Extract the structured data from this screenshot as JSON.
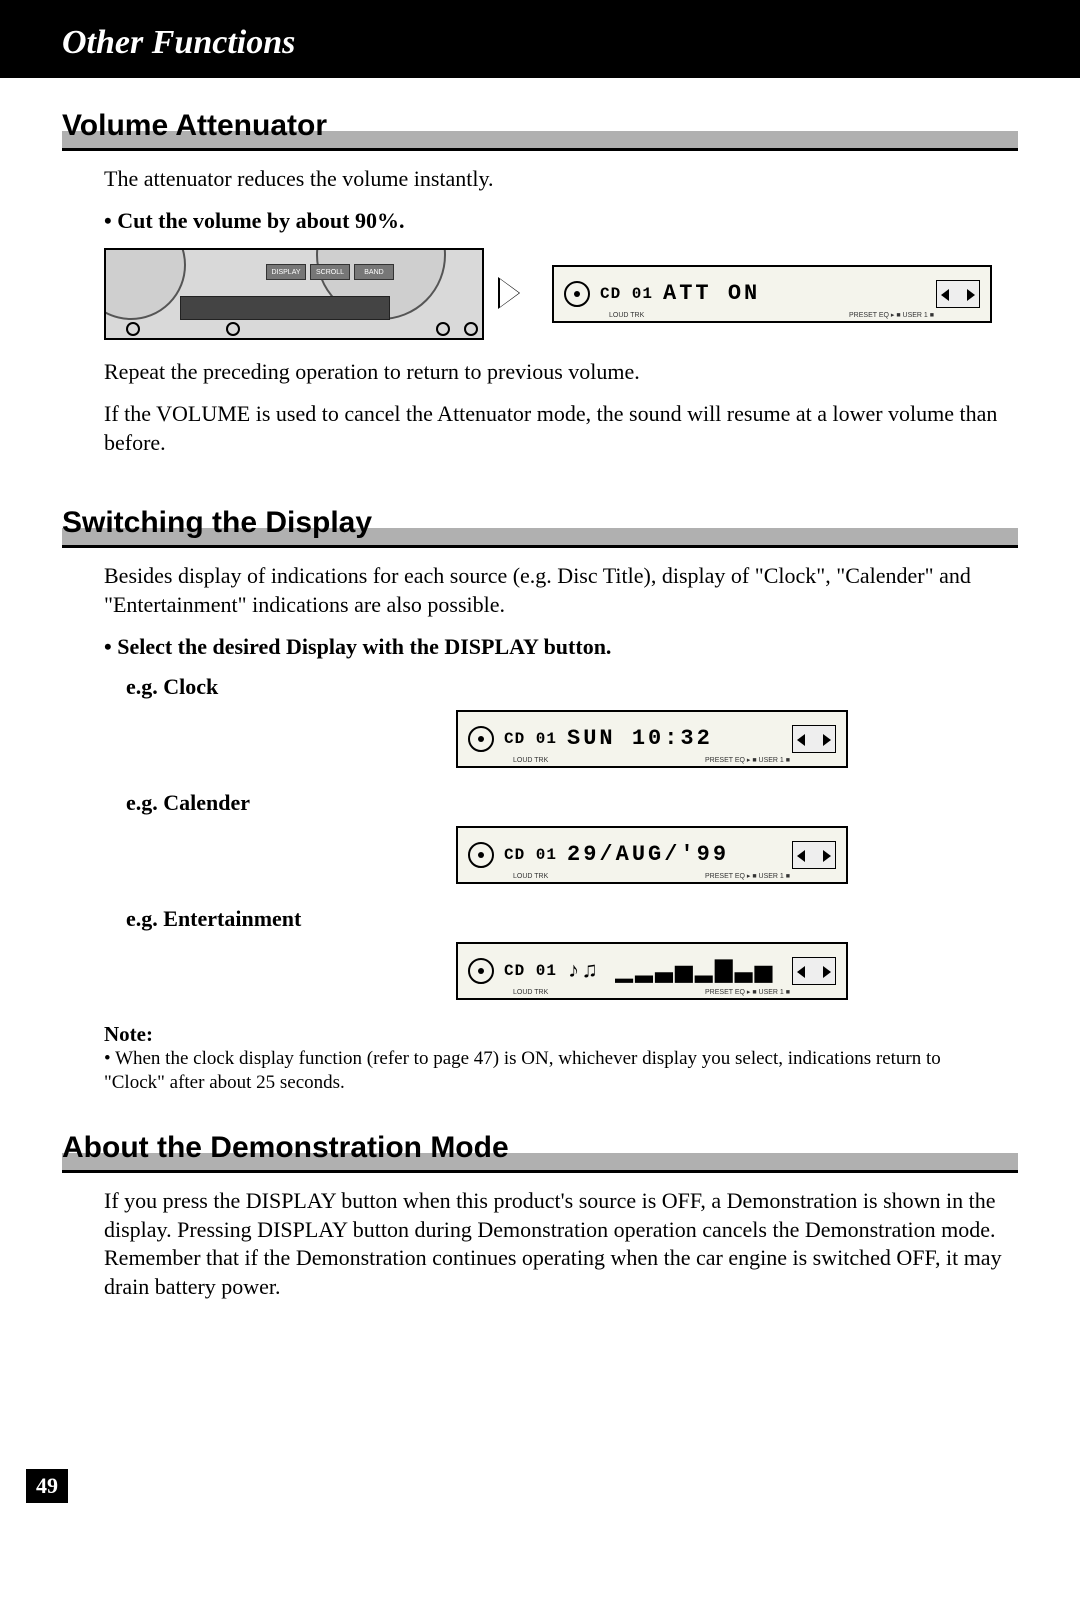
{
  "header": {
    "title": "Other Functions"
  },
  "sections": {
    "volume": {
      "title": "Volume Attenuator",
      "intro": "The attenuator reduces the volume instantly.",
      "bullet": "Cut the volume by about 90%.",
      "after1": "Repeat the preceding operation to return to previous volume.",
      "after2": "If the VOLUME is used to cancel the Attenuator mode, the sound will resume at a lower volume than before.",
      "device": {
        "buttons": [
          "DISPLAY",
          "SCROLL",
          "BAND"
        ]
      },
      "lcd": {
        "trk": "CD 01",
        "main": "ATT ON",
        "tiny_left": "LOUD  TRK",
        "tiny_right": "PRESET EQ ▸ ■ USER 1 ■"
      }
    },
    "switching": {
      "title": "Switching the Display",
      "intro": "Besides display of indications for each source (e.g. Disc Title), display of \"Clock\", \"Calender\" and \"Entertainment\" indications are also possible.",
      "bullet": "Select the desired Display with the DISPLAY button.",
      "examples": {
        "clock": {
          "label": "e.g. Clock",
          "trk": "CD 01",
          "main": "SUN  10:32",
          "tiny_left": "LOUD  TRK",
          "tiny_right": "PRESET EQ ▸ ■ USER 1 ■"
        },
        "calender": {
          "label": "e.g. Calender",
          "trk": "CD 01",
          "main": "29/AUG/'99",
          "tiny_left": "LOUD  TRK",
          "tiny_right": "PRESET EQ ▸ ■ USER 1 ■"
        },
        "entertainment": {
          "label": "e.g. Entertainment",
          "trk": "CD 01",
          "main": "♪♫ ▁▂▃▅▂▇▃▅",
          "tiny_left": "LOUD  TRK",
          "tiny_right": "PRESET EQ ▸ ■ USER 1 ■"
        }
      },
      "note_label": "Note:",
      "note_text": "When the clock display function (refer to page 47) is ON, whichever display you select, indications return to \"Clock\" after about 25 seconds."
    },
    "demo": {
      "title": "About the Demonstration Mode",
      "body": "If you press the DISPLAY button when this product's source is OFF, a Demonstration is shown in the display. Pressing DISPLAY button during Demonstration operation cancels the Demonstration mode. Remember that if the Demonstration continues operating when the car engine is switched OFF, it may drain battery power."
    }
  },
  "page_number": "49"
}
